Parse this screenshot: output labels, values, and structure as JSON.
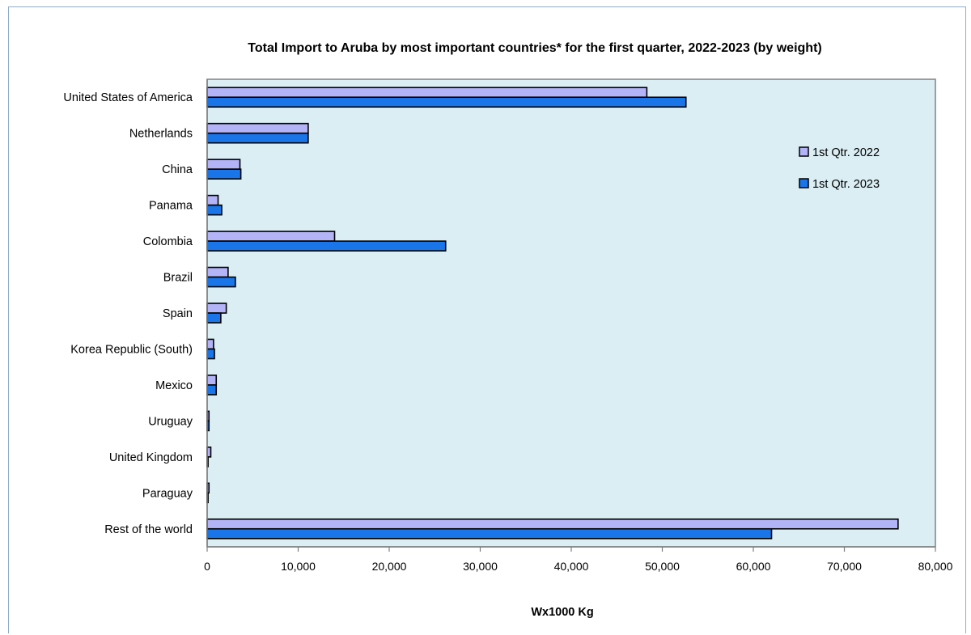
{
  "chart_data": {
    "type": "bar",
    "orientation": "horizontal",
    "title": "Total Import to Aruba by most important countries* for the first quarter, 2022-2023 (by weight)",
    "xlabel": "Wx1000 Kg",
    "ylabel": "",
    "xlim": [
      0,
      80000
    ],
    "x_ticks": [
      "0",
      "10,000",
      "20,000",
      "30,000",
      "40,000",
      "50,000",
      "60,000",
      "70,000",
      "80,000"
    ],
    "categories": [
      "United States of America",
      "Netherlands",
      "China",
      "Panama",
      "Colombia",
      "Brazil",
      "Spain",
      "Korea Republic (South)",
      "Mexico",
      "Uruguay",
      "United Kingdom",
      "Paraguay",
      "Rest of the world"
    ],
    "series": [
      {
        "name": "1st Qtr. 2022",
        "color": "#b3b3f7",
        "values": [
          48300,
          11100,
          3600,
          1200,
          14000,
          2300,
          2100,
          700,
          1000,
          200,
          400,
          200,
          75900
        ]
      },
      {
        "name": "1st Qtr. 2023",
        "color": "#1a75e8",
        "values": [
          52600,
          11100,
          3700,
          1600,
          26200,
          3100,
          1500,
          800,
          1000,
          200,
          100,
          100,
          62000
        ]
      }
    ],
    "legend_position": "right",
    "grid": false,
    "plot_background": "#daeef3"
  }
}
